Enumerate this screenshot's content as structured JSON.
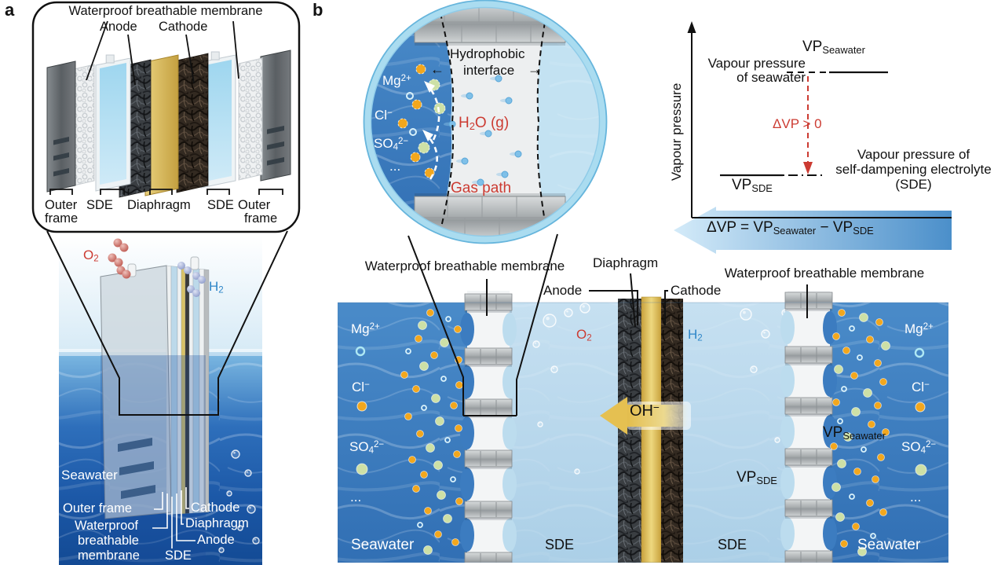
{
  "colors": {
    "accent_red": "#cc3b32",
    "h2_blue": "#2e86c8",
    "seawater_blue": "#3a7cc2",
    "sde_blue": "#bcdcee",
    "diaphragm_gold": "#dfc165"
  },
  "panel_a": {
    "letter": "a",
    "exploded": {
      "membrane": "Waterproof breathable membrane",
      "anode": "Anode",
      "cathode": "Cathode",
      "outer_frame_left_1": "Outer",
      "outer_frame_left_2": "frame",
      "sde_left": "SDE",
      "diaphragm": "Diaphragm",
      "sde_right": "SDE",
      "outer_frame_right_1": "Outer",
      "outer_frame_right_2": "frame"
    },
    "scene": {
      "o2_main": "O",
      "o2_sub": "2",
      "h2_main": "H",
      "h2_sub": "2",
      "seawater": "Seawater",
      "outer_frame": "Outer frame",
      "waterproof_1": "Waterproof",
      "waterproof_2": "breathable",
      "waterproof_3": "membrane",
      "sde": "SDE",
      "cathode": "Cathode",
      "diaphragm": "Diaphragm",
      "anode": "Anode"
    }
  },
  "panel_b": {
    "letter": "b",
    "circle": {
      "hydrophobic_1": "Hydrophobic",
      "hydrophobic_2": "interface",
      "arrow_left": "←",
      "arrow_right": "→",
      "mg_main": "Mg",
      "mg_sup": "2+",
      "cl_main": "Cl",
      "cl_sup": "−",
      "so4_main": "SO",
      "so4_sub": "4",
      "so4_sup": "2−",
      "ellipsis": "...",
      "h2o_p1": "H",
      "h2o_sub": "2",
      "h2o_p2": "O (g)",
      "gas_path": "Gas path"
    },
    "graph": {
      "y_axis_label": "Vapour pressure",
      "vp_sw_main": "VP",
      "vp_sw_sub": "Seawater",
      "sw_text_1": "Vapour pressure",
      "sw_text_2": "of seawater",
      "delta": "ΔVP > 0",
      "vp_sde_main": "VP",
      "vp_sde_sub": "SDE",
      "sde_text_1": "Vapour pressure of",
      "sde_text_2": "self-dampening electrolyte",
      "sde_text_3": "(SDE)",
      "formula_p1": "ΔVP = VP",
      "formula_sub1": "Seawater",
      "formula_p2": " − VP",
      "formula_sub2": "SDE"
    },
    "section": {
      "membrane_left": "Waterproof breathable membrane",
      "membrane_right": "Waterproof breathable membrane",
      "diaphragm": "Diaphragm",
      "anode": "Anode",
      "cathode": "Cathode",
      "o2_main": "O",
      "o2_sub": "2",
      "h2_main": "H",
      "h2_sub": "2",
      "oh_main": "OH",
      "oh_sup": "−",
      "vp_sde_main": "VP",
      "vp_sde_sub": "SDE",
      "vp_sw_main": "VP",
      "vp_sw_sub": "Seawater",
      "sde_left": "SDE",
      "sde_right": "SDE",
      "seawater_left": "Seawater",
      "seawater_right": "Seawater",
      "ions_left": {
        "mg_main": "Mg",
        "mg_sup": "2+",
        "cl_main": "Cl",
        "cl_sup": "−",
        "so4_main": "SO",
        "so4_sub": "4",
        "so4_sup": "2−",
        "ellipsis": "..."
      },
      "ions_right": {
        "mg_main": "Mg",
        "mg_sup": "2+",
        "cl_main": "Cl",
        "cl_sup": "−",
        "so4_main": "SO",
        "so4_sub": "4",
        "so4_sup": "2−",
        "ellipsis": "..."
      }
    }
  }
}
